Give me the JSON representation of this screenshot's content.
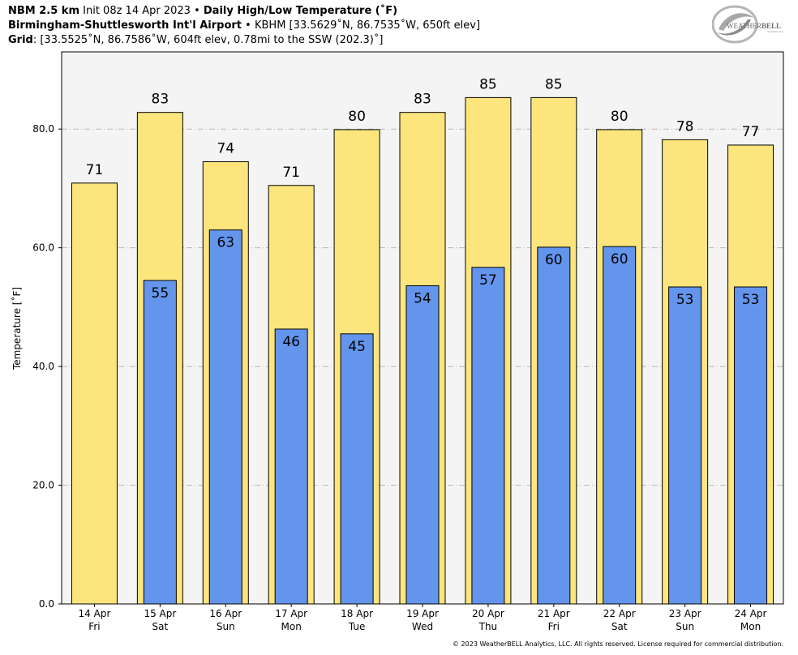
{
  "header": {
    "line1": {
      "model": "NBM 2.5 km",
      "init": "Init 08z 14 Apr 2023",
      "sep": "•",
      "product": "Daily High/Low Temperature (˚F)"
    },
    "line2": {
      "station": "Birmingham-Shuttlesworth Int'l Airport",
      "sep": "•",
      "info": "KBHM [33.5629˚N, 86.7535˚W, 650ft elev]"
    },
    "line3": {
      "label": "Grid",
      "info": ": [33.5525˚N, 86.7586˚W, 604ft elev, 0.78mi to the SSW (202.3)˚]"
    }
  },
  "logo": {
    "text_main": "WEATHER",
    "text_bold": "BELL",
    "text_sub": "Analytics LLC"
  },
  "copyright": "© 2023 WeatherBELL Analytics, LLC. All rights reserved. License required for commercial distribution.",
  "chart_data": {
    "type": "bar",
    "title": "Daily High/Low Temperature (˚F)",
    "ylabel": "Temperature [˚F]",
    "ylim": [
      0,
      93
    ],
    "yticks": [
      "0.0",
      "20.0",
      "40.0",
      "60.0",
      "80.0"
    ],
    "ytick_values": [
      0,
      20,
      40,
      60,
      80
    ],
    "grid": true,
    "categories": [
      {
        "date": "14 Apr",
        "day": "Fri"
      },
      {
        "date": "15 Apr",
        "day": "Sat"
      },
      {
        "date": "16 Apr",
        "day": "Sun"
      },
      {
        "date": "17 Apr",
        "day": "Mon"
      },
      {
        "date": "18 Apr",
        "day": "Tue"
      },
      {
        "date": "19 Apr",
        "day": "Wed"
      },
      {
        "date": "20 Apr",
        "day": "Thu"
      },
      {
        "date": "21 Apr",
        "day": "Fri"
      },
      {
        "date": "22 Apr",
        "day": "Sat"
      },
      {
        "date": "23 Apr",
        "day": "Sun"
      },
      {
        "date": "24 Apr",
        "day": "Mon"
      }
    ],
    "series": [
      {
        "key": "high",
        "color": "#fde57d",
        "values": [
          70.9,
          82.8,
          74.5,
          70.5,
          79.9,
          82.8,
          85.3,
          85.3,
          79.9,
          78.2,
          77.3
        ],
        "labels": [
          "71",
          "83",
          "74",
          "71",
          "80",
          "83",
          "85",
          "85",
          "80",
          "78",
          "77"
        ]
      },
      {
        "key": "low",
        "color": "#6495ed",
        "values": [
          null,
          54.5,
          63.0,
          46.3,
          45.5,
          53.6,
          56.7,
          60.1,
          60.2,
          53.4,
          53.4
        ],
        "labels": [
          "",
          "55",
          "63",
          "46",
          "45",
          "54",
          "57",
          "60",
          "60",
          "53",
          "53"
        ]
      }
    ],
    "colors": {
      "plot_bg": "#f4f4f4",
      "grid": "#b8b8b8",
      "bar_edge": "#000000"
    }
  }
}
